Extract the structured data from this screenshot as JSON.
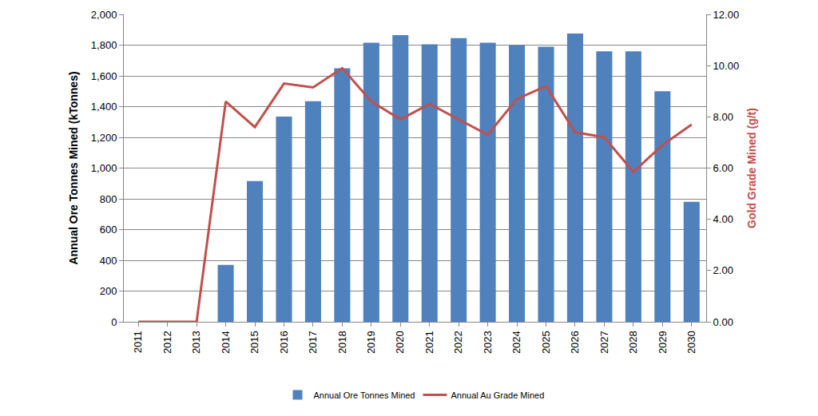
{
  "chart_data": {
    "type": "bar",
    "categories": [
      "2011",
      "2012",
      "2013",
      "2014",
      "2015",
      "2016",
      "2017",
      "2018",
      "2019",
      "2020",
      "2021",
      "2022",
      "2023",
      "2024",
      "2025",
      "2026",
      "2027",
      "2028",
      "2029",
      "2030"
    ],
    "series": [
      {
        "name": "Annual Ore Tonnes Mined",
        "type": "bar",
        "color": "#4f81bd",
        "values": [
          0,
          0,
          0,
          370,
          915,
          1335,
          1435,
          1650,
          1815,
          1865,
          1805,
          1845,
          1815,
          1800,
          1790,
          1875,
          1760,
          1760,
          1500,
          780
        ]
      },
      {
        "name": "Annual Au Grade Mined",
        "type": "line",
        "color": "#c0504d",
        "axis": "y2",
        "values": [
          0,
          0,
          0,
          8.6,
          7.6,
          9.3,
          9.15,
          9.9,
          8.6,
          7.9,
          8.5,
          7.9,
          7.3,
          8.7,
          9.2,
          7.4,
          7.2,
          5.85,
          6.9,
          7.7
        ]
      }
    ],
    "y_label": "Annual Ore Tonnes Mined (kTonnes)",
    "y2_label": "Gold Grade Mined (g/t)",
    "ylim": [
      0,
      2000
    ],
    "yticks": [
      0,
      200,
      400,
      600,
      800,
      {
        "value": 1000,
        "label": "1,000"
      },
      {
        "value": 1200,
        "label": "1,200"
      },
      {
        "value": 1400,
        "label": "1,400"
      },
      {
        "value": 1600,
        "label": "1,600"
      },
      {
        "value": 1800,
        "label": "1,800"
      },
      {
        "value": 2000,
        "label": "2,000"
      }
    ],
    "y2lim": [
      0,
      12
    ],
    "y2ticks": [
      {
        "value": 0,
        "label": "0.00"
      },
      {
        "value": 2,
        "label": "2.00"
      },
      {
        "value": 4,
        "label": "4.00"
      },
      {
        "value": 6,
        "label": "6.00"
      },
      {
        "value": 8,
        "label": "8.00"
      },
      {
        "value": 10,
        "label": "10.00"
      },
      {
        "value": 12,
        "label": "12.00"
      }
    ],
    "grid": true,
    "legend": "bottom"
  }
}
